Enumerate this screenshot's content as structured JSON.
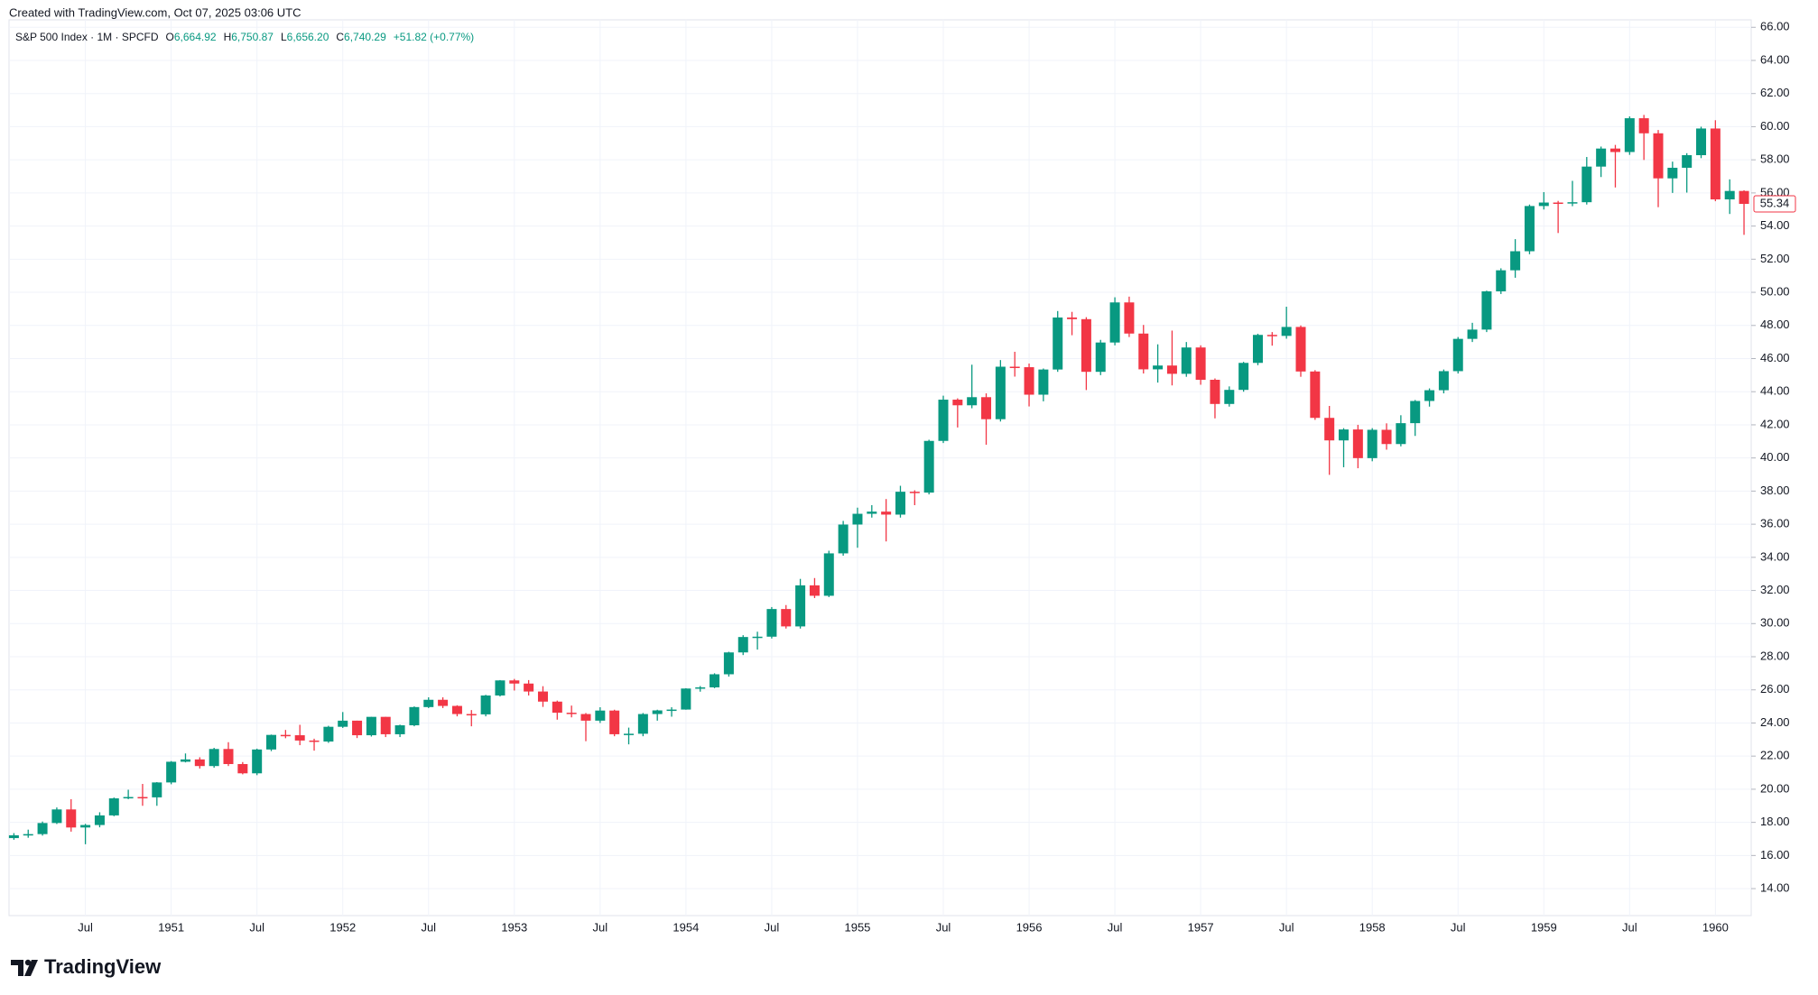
{
  "header": {
    "credit": "Created with TradingView.com, Oct 07, 2025 03:06 UTC"
  },
  "chart_data": {
    "type": "candlestick",
    "title": "S&P 500 Index · 1M · SPCFD",
    "legend": [
      {
        "label": "O",
        "value": "6,664.92"
      },
      {
        "label": "H",
        "value": "6,750.87"
      },
      {
        "label": "L",
        "value": "6,656.20"
      },
      {
        "label": "C",
        "value": "6,740.29"
      }
    ],
    "change": "+51.82 (+0.77%)",
    "up_color": "#089981",
    "down_color": "#f23645",
    "grid": true,
    "x": [
      "1950-02",
      "1950-03",
      "1950-04",
      "1950-05",
      "1950-06",
      "1950-07",
      "1950-08",
      "1950-09",
      "1950-10",
      "1950-11",
      "1950-12",
      "1951-01",
      "1951-02",
      "1951-03",
      "1951-04",
      "1951-05",
      "1951-06",
      "1951-07",
      "1951-08",
      "1951-09",
      "1951-10",
      "1951-11",
      "1951-12",
      "1952-01",
      "1952-02",
      "1952-03",
      "1952-04",
      "1952-05",
      "1952-06",
      "1952-07",
      "1952-08",
      "1952-09",
      "1952-10",
      "1952-11",
      "1952-12",
      "1953-01",
      "1953-02",
      "1953-03",
      "1953-04",
      "1953-05",
      "1953-06",
      "1953-07",
      "1953-08",
      "1953-09",
      "1953-10",
      "1953-11",
      "1953-12",
      "1954-01",
      "1954-02",
      "1954-03",
      "1954-04",
      "1954-05",
      "1954-06",
      "1954-07",
      "1954-08",
      "1954-09",
      "1954-10",
      "1954-11",
      "1954-12",
      "1955-01",
      "1955-02",
      "1955-03",
      "1955-04",
      "1955-05",
      "1955-06",
      "1955-07",
      "1955-08",
      "1955-09",
      "1955-10",
      "1955-11",
      "1955-12",
      "1956-01",
      "1956-02",
      "1956-03",
      "1956-04",
      "1956-05",
      "1956-06",
      "1956-07",
      "1956-08",
      "1956-09",
      "1956-10",
      "1956-11",
      "1956-12",
      "1957-01",
      "1957-02",
      "1957-03",
      "1957-04",
      "1957-05",
      "1957-06",
      "1957-07",
      "1957-08",
      "1957-09",
      "1957-10",
      "1957-11",
      "1957-12",
      "1958-01",
      "1958-02",
      "1958-03",
      "1958-04",
      "1958-05",
      "1958-06",
      "1958-07",
      "1958-08",
      "1958-09",
      "1958-10",
      "1958-11",
      "1958-12",
      "1959-01",
      "1959-02",
      "1959-03",
      "1959-04",
      "1959-05",
      "1959-06",
      "1959-07",
      "1959-08",
      "1959-09",
      "1959-10",
      "1959-11",
      "1959-12",
      "1960-01",
      "1960-02",
      "1960-03"
    ],
    "open": [
      17.05,
      17.22,
      17.29,
      17.96,
      18.78,
      17.69,
      17.84,
      18.42,
      19.45,
      19.53,
      19.51,
      20.41,
      21.66,
      21.8,
      21.4,
      22.43,
      21.52,
      20.96,
      22.4,
      23.28,
      23.26,
      22.94,
      22.88,
      23.77,
      24.14,
      23.26,
      24.37,
      23.32,
      23.86,
      24.96,
      25.4,
      25.03,
      24.54,
      24.52,
      25.66,
      26.57,
      26.38,
      25.9,
      25.29,
      24.62,
      24.54,
      24.14,
      24.75,
      23.32,
      23.35,
      24.54,
      24.76,
      24.81,
      26.08,
      26.15,
      26.94,
      28.26,
      29.19,
      29.21,
      30.88,
      29.83,
      32.31,
      31.68,
      34.24,
      35.98,
      36.63,
      36.76,
      36.58,
      37.96,
      37.91,
      41.03,
      43.52,
      43.18,
      43.67,
      42.34,
      45.51,
      45.48,
      43.82,
      45.34,
      48.48,
      48.38,
      45.2,
      46.97,
      49.39,
      47.51,
      45.35,
      45.58,
      45.08,
      46.67,
      44.72,
      43.26,
      44.11,
      45.74,
      47.43,
      47.37,
      47.91,
      45.22,
      42.42,
      41.06,
      41.72,
      39.99,
      41.7,
      40.84,
      42.1,
      43.44,
      44.09,
      45.24,
      47.19,
      47.75,
      50.06,
      51.33,
      52.48,
      55.21,
      55.42,
      55.41,
      55.44,
      57.59,
      58.68,
      58.47,
      60.51,
      59.6,
      56.88,
      57.52,
      58.28,
      59.89,
      55.61,
      56.12
    ],
    "high": [
      17.35,
      17.56,
      18.05,
      18.9,
      19.4,
      17.91,
      18.61,
      19.5,
      19.97,
      20.32,
      20.43,
      21.7,
      22.16,
      21.93,
      22.5,
      22.84,
      21.64,
      22.45,
      23.3,
      23.58,
      23.89,
      23.05,
      23.83,
      24.66,
      24.14,
      24.37,
      24.37,
      23.9,
      25.0,
      25.55,
      25.55,
      25.07,
      24.78,
      25.7,
      26.59,
      26.66,
      26.59,
      26.22,
      25.35,
      25.05,
      24.6,
      24.95,
      24.8,
      23.72,
      24.6,
      24.8,
      24.95,
      26.1,
      26.23,
      27.0,
      28.3,
      29.3,
      29.51,
      31.0,
      31.12,
      32.7,
      32.75,
      34.4,
      36.2,
      37.0,
      37.15,
      37.52,
      38.32,
      38.05,
      41.1,
      43.76,
      43.6,
      45.63,
      43.9,
      45.91,
      46.41,
      45.7,
      45.4,
      48.87,
      48.82,
      48.5,
      47.13,
      49.7,
      49.74,
      48.03,
      46.86,
      47.69,
      47.0,
      46.8,
      44.8,
      44.32,
      45.8,
      47.5,
      47.6,
      49.13,
      48.0,
      45.3,
      43.14,
      41.8,
      42.0,
      41.8,
      42.09,
      42.58,
      43.5,
      44.2,
      45.34,
      47.3,
      48.16,
      50.1,
      51.45,
      53.21,
      55.3,
      56.05,
      55.52,
      56.73,
      58.17,
      58.8,
      58.9,
      60.62,
      60.71,
      59.8,
      57.89,
      58.4,
      60.0,
      60.39,
      56.82,
      56.16
    ],
    "low": [
      16.95,
      17.07,
      17.2,
      17.9,
      17.44,
      16.68,
      17.7,
      18.37,
      19.4,
      19.0,
      19.0,
      20.3,
      21.62,
      21.25,
      21.3,
      21.4,
      20.9,
      20.85,
      22.3,
      23.08,
      22.66,
      22.33,
      22.8,
      23.7,
      23.09,
      23.18,
      23.15,
      23.15,
      23.8,
      24.9,
      24.9,
      24.4,
      23.8,
      24.4,
      25.6,
      25.96,
      25.66,
      24.97,
      24.2,
      24.34,
      22.9,
      24.0,
      23.2,
      22.71,
      23.2,
      24.14,
      24.38,
      24.8,
      25.89,
      26.1,
      26.8,
      28.1,
      28.43,
      29.1,
      29.7,
      29.7,
      31.54,
      31.6,
      34.1,
      34.58,
      36.4,
      34.96,
      36.4,
      37.15,
      37.8,
      40.9,
      41.84,
      43.0,
      40.8,
      42.2,
      44.91,
      43.11,
      43.42,
      45.2,
      47.41,
      44.1,
      45.0,
      46.8,
      47.3,
      45.1,
      44.55,
      44.38,
      44.9,
      44.42,
      42.39,
      43.1,
      44.0,
      45.6,
      46.78,
      47.2,
      44.9,
      42.3,
      38.98,
      39.44,
      39.38,
      39.8,
      40.5,
      40.7,
      41.33,
      43.1,
      43.9,
      45.1,
      47.0,
      47.6,
      49.9,
      50.88,
      52.3,
      55.0,
      53.58,
      55.2,
      55.3,
      56.96,
      56.33,
      58.3,
      57.99,
      55.14,
      56.0,
      56.02,
      58.1,
      55.5,
      54.73,
      53.47
    ],
    "close": [
      17.22,
      17.29,
      17.96,
      18.78,
      17.69,
      17.84,
      18.42,
      19.45,
      19.53,
      19.51,
      20.41,
      21.66,
      21.8,
      21.4,
      22.43,
      21.52,
      20.96,
      22.4,
      23.28,
      23.26,
      22.94,
      22.88,
      23.77,
      24.14,
      23.26,
      24.37,
      23.32,
      23.86,
      24.96,
      25.4,
      25.03,
      24.54,
      24.52,
      25.66,
      26.57,
      26.38,
      25.9,
      25.29,
      24.62,
      24.54,
      24.14,
      24.75,
      23.32,
      23.35,
      24.54,
      24.76,
      24.81,
      26.08,
      26.15,
      26.94,
      28.26,
      29.19,
      29.21,
      30.88,
      29.83,
      32.31,
      31.68,
      34.24,
      35.98,
      36.63,
      36.76,
      36.58,
      37.96,
      37.91,
      41.03,
      43.52,
      43.18,
      43.67,
      42.34,
      45.51,
      45.48,
      43.82,
      45.34,
      48.48,
      48.38,
      45.2,
      46.97,
      49.39,
      47.51,
      45.35,
      45.58,
      45.08,
      46.67,
      44.72,
      43.26,
      44.11,
      45.74,
      47.43,
      47.37,
      47.91,
      45.22,
      42.42,
      41.06,
      41.72,
      39.99,
      41.7,
      40.84,
      42.1,
      43.44,
      44.09,
      45.24,
      47.19,
      47.75,
      50.06,
      51.33,
      52.48,
      55.21,
      55.42,
      55.41,
      55.44,
      57.59,
      58.68,
      58.47,
      60.51,
      59.6,
      56.88,
      57.52,
      58.28,
      59.89,
      55.61,
      56.12,
      55.34
    ],
    "xticks": [
      {
        "value": "1950-07",
        "label": "Jul"
      },
      {
        "value": "1951-01",
        "label": "1951"
      },
      {
        "value": "1951-07",
        "label": "Jul"
      },
      {
        "value": "1952-01",
        "label": "1952"
      },
      {
        "value": "1952-07",
        "label": "Jul"
      },
      {
        "value": "1953-01",
        "label": "1953"
      },
      {
        "value": "1953-07",
        "label": "Jul"
      },
      {
        "value": "1954-01",
        "label": "1954"
      },
      {
        "value": "1954-07",
        "label": "Jul"
      },
      {
        "value": "1955-01",
        "label": "1955"
      },
      {
        "value": "1955-07",
        "label": "Jul"
      },
      {
        "value": "1956-01",
        "label": "1956"
      },
      {
        "value": "1956-07",
        "label": "Jul"
      },
      {
        "value": "1957-01",
        "label": "1957"
      },
      {
        "value": "1957-07",
        "label": "Jul"
      },
      {
        "value": "1958-01",
        "label": "1958"
      },
      {
        "value": "1958-07",
        "label": "Jul"
      },
      {
        "value": "1959-01",
        "label": "1959"
      },
      {
        "value": "1959-07",
        "label": "Jul"
      },
      {
        "value": "1960-01",
        "label": "1960"
      }
    ],
    "ylim": [
      12.37,
      66.45
    ],
    "yticks": [
      {
        "value": 14,
        "label": "14.00"
      },
      {
        "value": 16,
        "label": "16.00"
      },
      {
        "value": 18,
        "label": "18.00"
      },
      {
        "value": 20,
        "label": "20.00"
      },
      {
        "value": 22,
        "label": "22.00"
      },
      {
        "value": 24,
        "label": "24.00"
      },
      {
        "value": 26,
        "label": "26.00"
      },
      {
        "value": 28,
        "label": "28.00"
      },
      {
        "value": 30,
        "label": "30.00"
      },
      {
        "value": 32,
        "label": "32.00"
      },
      {
        "value": 34,
        "label": "34.00"
      },
      {
        "value": 36,
        "label": "36.00"
      },
      {
        "value": 38,
        "label": "38.00"
      },
      {
        "value": 40,
        "label": "40.00"
      },
      {
        "value": 42,
        "label": "42.00"
      },
      {
        "value": 44,
        "label": "44.00"
      },
      {
        "value": 46,
        "label": "46.00"
      },
      {
        "value": 48,
        "label": "48.00"
      },
      {
        "value": 50,
        "label": "50.00"
      },
      {
        "value": 52,
        "label": "52.00"
      },
      {
        "value": 54,
        "label": "54.00"
      },
      {
        "value": 56,
        "label": "56.00"
      },
      {
        "value": 58,
        "label": "58.00"
      },
      {
        "value": 60,
        "label": "60.00"
      },
      {
        "value": 62,
        "label": "62.00"
      },
      {
        "value": 64,
        "label": "64.00"
      },
      {
        "value": 66,
        "label": "66.00"
      }
    ]
  },
  "footer": {
    "brand": "TradingView"
  }
}
